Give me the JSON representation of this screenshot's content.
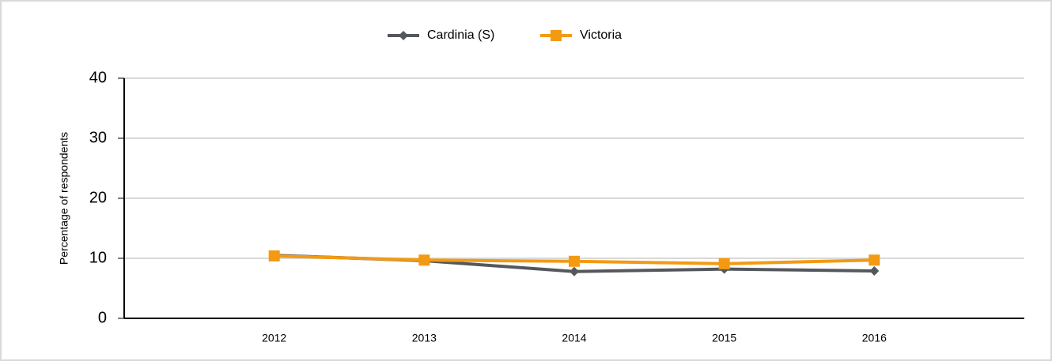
{
  "chart_data": {
    "type": "line",
    "y_label": "Percentage of respondents",
    "x": [
      2012,
      2013,
      2014,
      2015,
      2016
    ],
    "xlim": [
      2011,
      2017
    ],
    "xticks": [
      2012,
      2013,
      2014,
      2015,
      2016
    ],
    "ylim": [
      0,
      40
    ],
    "yticks": [
      0,
      10,
      20,
      30,
      40
    ],
    "grid": true,
    "legend": "top",
    "series": [
      {
        "name": "Cardinia (S)",
        "color": "#54585d",
        "marker": "diamond",
        "values": [
          10.5,
          9.6,
          7.8,
          8.2,
          7.9
        ]
      },
      {
        "name": "Victoria",
        "color": "#f39a12",
        "marker": "square",
        "values": [
          10.4,
          9.7,
          9.5,
          9.1,
          9.7
        ]
      }
    ]
  }
}
